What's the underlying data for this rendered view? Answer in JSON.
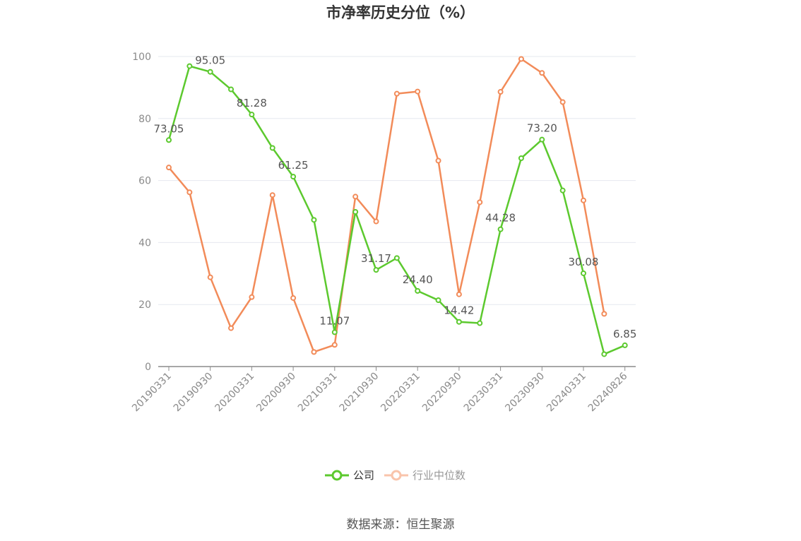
{
  "chart_data": {
    "type": "line",
    "title": "市净率历史分位（%）",
    "xlabel": "",
    "ylabel": "",
    "ylim": [
      0,
      100
    ],
    "yticks": [
      0,
      20,
      40,
      60,
      80,
      100
    ],
    "x_tick_labels": [
      "20190331",
      "20190930",
      "20200331",
      "20200930",
      "20210331",
      "20210930",
      "20220331",
      "20220930",
      "20230331",
      "20230930",
      "20240331",
      "20240826"
    ],
    "x_tick_index": [
      0,
      2,
      4,
      6,
      8,
      10,
      12,
      14,
      16,
      18,
      20,
      22
    ],
    "n_points": 23,
    "grid": true,
    "legend_position": "bottom",
    "series": [
      {
        "name": "公司",
        "color": "#5cc92e",
        "values": [
          73.05,
          96.9,
          95.05,
          89.4,
          81.28,
          70.5,
          61.25,
          47.3,
          11.07,
          49.9,
          31.17,
          35.0,
          24.4,
          21.4,
          14.42,
          14.0,
          44.28,
          67.2,
          73.2,
          56.8,
          30.08,
          4.0,
          6.85
        ],
        "labels": {
          "0": "73.05",
          "2": "95.05",
          "4": "81.28",
          "6": "61.25",
          "8": "11.07",
          "10": "31.17",
          "12": "24.40",
          "14": "14.42",
          "16": "44.28",
          "18": "73.20",
          "20": "30.08",
          "22": "6.85"
        }
      },
      {
        "name": "行业中位数",
        "color": "#f28b59",
        "values": [
          64.2,
          56.2,
          28.8,
          12.4,
          22.4,
          55.3,
          22.1,
          4.7,
          7.0,
          54.8,
          46.8,
          88.0,
          88.7,
          66.4,
          23.3,
          53.0,
          88.6,
          99.2,
          94.7,
          85.3,
          53.6,
          17.0
        ]
      }
    ]
  },
  "legend": {
    "items": [
      {
        "label": "公司",
        "color": "#5cc92e",
        "text_color": "#333333"
      },
      {
        "label": "行业中位数",
        "color": "#f9c4ab",
        "text_color": "#999999"
      }
    ]
  },
  "source": "数据来源：恒生聚源"
}
